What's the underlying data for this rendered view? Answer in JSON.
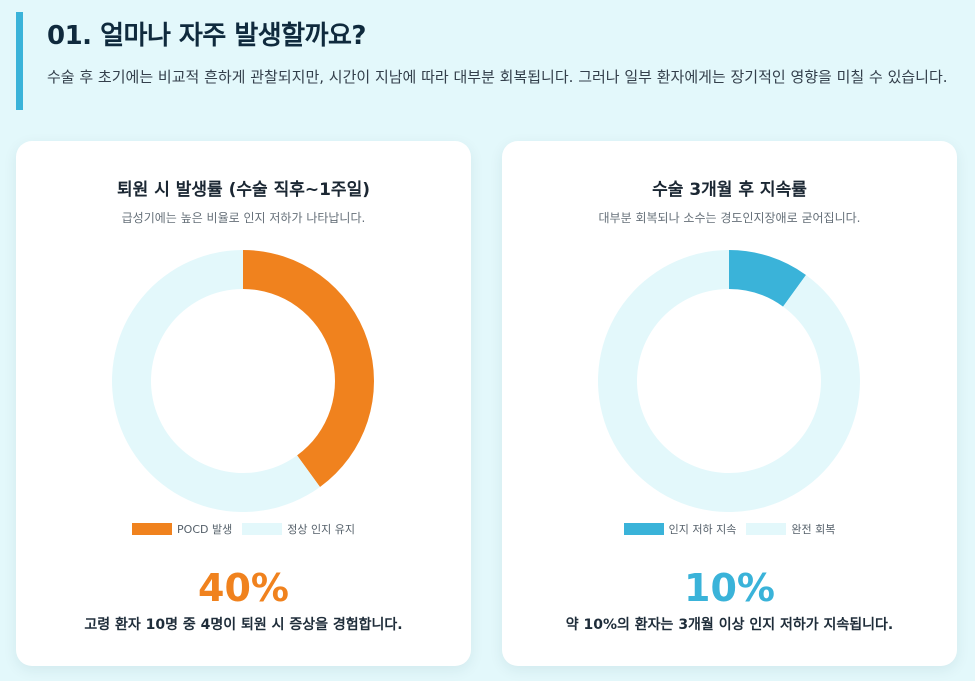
{
  "header": {
    "title": "01. 얼마나 자주 발생할까요?",
    "description": "수술 후 초기에는 비교적 흔하게 관찰되지만, 시간이 지남에 따라 대부분 회복됩니다. 그러나 일부 환자에게는 장기적인 영향을 미칠 수 있습니다."
  },
  "colors": {
    "accent_bar": "#3ab3d9",
    "orange": "#f0821e",
    "blue": "#3ab3d9",
    "track": "#e3f8fb"
  },
  "chart_data": [
    {
      "type": "pie",
      "title": "퇴원 시 발생률 (수술 직후~1주일)",
      "subtitle": "급성기에는 높은 비율로 인지 저하가 나타납니다.",
      "categories": [
        "POCD 발생",
        "정상 인지 유지"
      ],
      "values": [
        40,
        60
      ],
      "colors": [
        "#f0821e",
        "#e3f8fb"
      ],
      "legend_position": "bottom",
      "highlight_value": "40%",
      "highlight_color": "#f0821e",
      "caption": "고령 환자 10명 중 4명이 퇴원 시 증상을 경험합니다."
    },
    {
      "type": "pie",
      "title": "수술 3개월 후 지속률",
      "subtitle": "대부분 회복되나 소수는 경도인지장애로 굳어집니다.",
      "categories": [
        "인지 저하 지속",
        "완전 회복"
      ],
      "values": [
        10,
        90
      ],
      "colors": [
        "#3ab3d9",
        "#e3f8fb"
      ],
      "legend_position": "bottom",
      "highlight_value": "10%",
      "highlight_color": "#3ab3d9",
      "caption": "약 10%의 환자는 3개월 이상 인지 저하가 지속됩니다."
    }
  ]
}
